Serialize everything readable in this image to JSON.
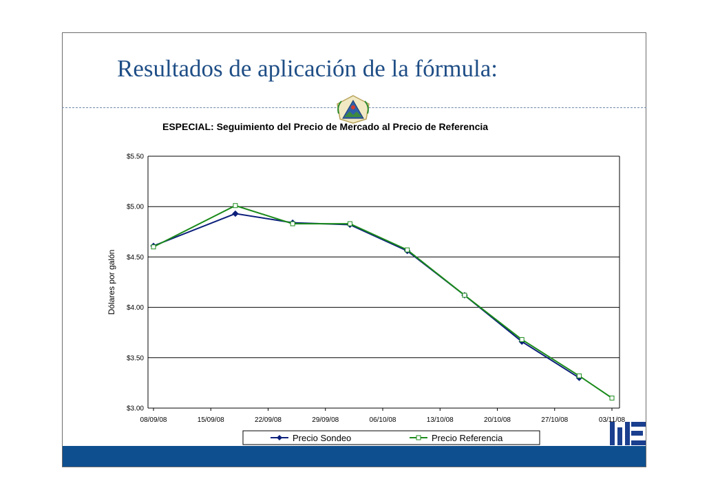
{
  "slide": {
    "title": "Resultados de aplicación de la fórmula:"
  },
  "colors": {
    "title": "#1f4e86",
    "footer_bar": "#0d4f8f",
    "series_sondeo": "#0b1f7a",
    "series_referencia": "#1a8a1a"
  },
  "icons": {
    "seal": "el-salvador-coat-of-arms-icon",
    "logo": "ministerio-economia-logo-icon"
  },
  "chart_data": {
    "type": "line",
    "title": "ESPECIAL: Seguimiento del Precio de Mercado al Precio de Referencia",
    "xlabel": "",
    "ylabel": "Dólares por galón",
    "categories": [
      "08/09/08",
      "15/09/08",
      "22/09/08",
      "29/09/08",
      "06/10/08",
      "13/10/08",
      "20/10/08",
      "27/10/08",
      "03/11/08"
    ],
    "y_ticks": [
      "$5.50",
      "$5.00",
      "$4.50",
      "$4.00",
      "$3.50",
      "$3.00"
    ],
    "ylim": [
      3.0,
      5.5
    ],
    "grid": true,
    "legend_position": "bottom",
    "series": [
      {
        "name": "Precio Sondeo",
        "marker": "diamond",
        "points": [
          {
            "x": "08/09/08",
            "y": 4.61
          },
          {
            "x": "18/09/08",
            "y": 4.93
          },
          {
            "x": "25/09/08",
            "y": 4.84
          },
          {
            "x": "02/10/08",
            "y": 4.82
          },
          {
            "x": "09/10/08",
            "y": 4.56
          },
          {
            "x": "16/10/08",
            "y": 4.12
          },
          {
            "x": "23/10/08",
            "y": 3.66
          },
          {
            "x": "30/10/08",
            "y": 3.3
          }
        ]
      },
      {
        "name": "Precio Referencia",
        "marker": "square",
        "points": [
          {
            "x": "08/09/08",
            "y": 4.6
          },
          {
            "x": "18/09/08",
            "y": 5.01
          },
          {
            "x": "25/09/08",
            "y": 4.83
          },
          {
            "x": "02/10/08",
            "y": 4.83
          },
          {
            "x": "09/10/08",
            "y": 4.57
          },
          {
            "x": "16/10/08",
            "y": 4.12
          },
          {
            "x": "23/10/08",
            "y": 3.68
          },
          {
            "x": "30/10/08",
            "y": 3.32
          },
          {
            "x": "03/11/08",
            "y": 3.1
          }
        ]
      }
    ]
  }
}
